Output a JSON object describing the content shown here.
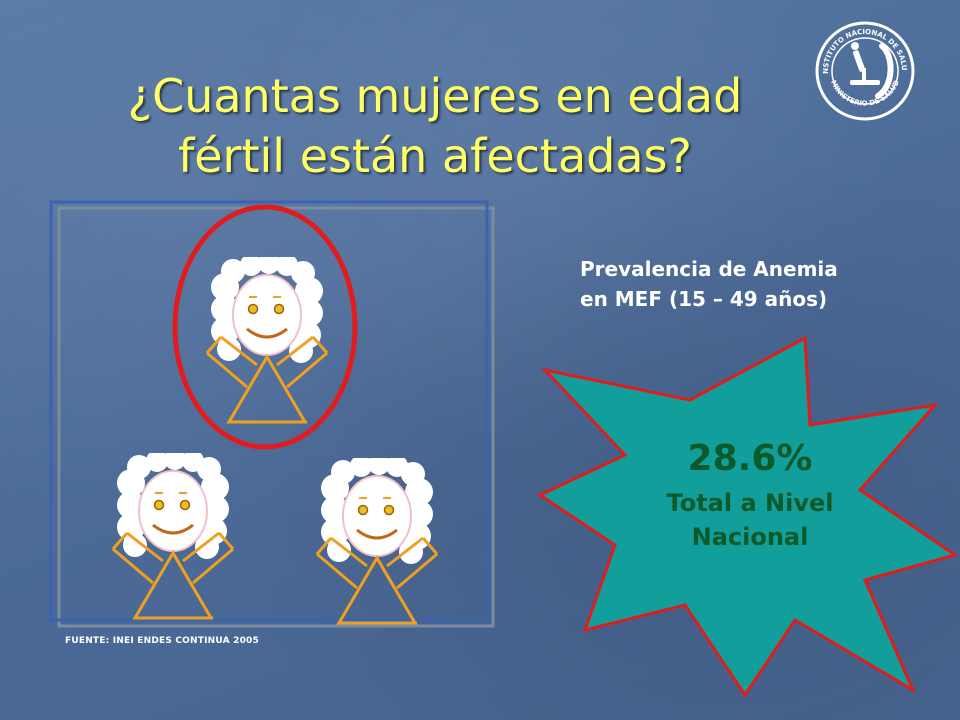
{
  "slide": {
    "title_line1": "¿Cuantas mujeres en edad",
    "title_line2": "fértil están afectadas?",
    "logo_text_top": "INSTITUTO NACIONAL DE SALUD",
    "logo_text_bottom": "MINISTERIO DE SALUD",
    "source": "FUENTE: INEI ENDES CONTINUA 2005",
    "prevalence_title_line1": "Prevalencia de Anemia",
    "prevalence_title_line2": "en MEF (15 – 49 años)",
    "burst_value": "28.6%",
    "burst_label_line1": "Total a Nivel",
    "burst_label_line2": "Nacional"
  },
  "figures": {
    "total": 3,
    "highlighted": 1,
    "icon": "woman-figure-icon"
  },
  "colors": {
    "background": "#4f6f9c",
    "title": "#ffff66",
    "circle": "#e01c1c",
    "burst_fill": "#129e9a",
    "burst_stroke": "#e01c1c",
    "burst_text": "#0b5a2a",
    "figure_body": "#f0a020"
  }
}
